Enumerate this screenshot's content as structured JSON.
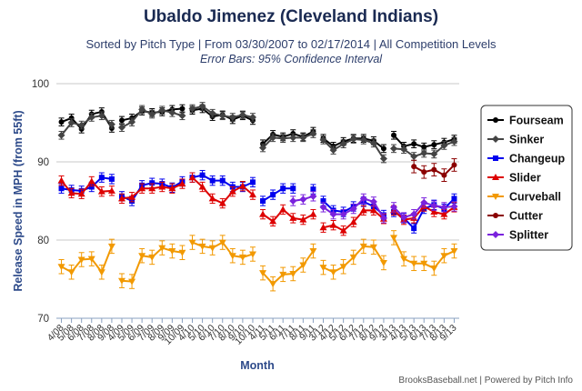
{
  "chart": {
    "title": "Ubaldo Jimenez (Cleveland Indians)",
    "subtitle": "Sorted by Pitch Type | From 03/30/2007 to 02/17/2014 | All Competition Levels",
    "subtitle2": "Error Bars: 95% Confidence Interval",
    "credits": "BrooksBaseball.net | Powered by Pitch Info"
  },
  "chart_data": {
    "type": "line",
    "title": "Ubaldo Jimenez (Cleveland Indians)",
    "xlabel": "Month",
    "ylabel": "Release Speed in MPH (from 55ft)",
    "ylim": [
      70,
      100
    ],
    "yticks": [
      70,
      80,
      90,
      100
    ],
    "grid": true,
    "legend_position": "right",
    "categories": [
      "4/08",
      "5/08",
      "6/08",
      "7/08",
      "8/08",
      "9/08",
      "4/09",
      "5/09",
      "6/09",
      "7/09",
      "8/09",
      "9/09",
      "10/09",
      "4/10",
      "5/10",
      "6/10",
      "7/10",
      "8/10",
      "9/10",
      "10/10",
      "4/11",
      "5/11",
      "6/11",
      "7/11",
      "8/11",
      "9/11",
      "3/12",
      "4/12",
      "5/12",
      "6/12",
      "7/12",
      "8/12",
      "9/12",
      "3/13",
      "4/13",
      "5/13",
      "6/13",
      "7/13",
      "8/13",
      "9/13"
    ],
    "series": [
      {
        "name": "Fourseam",
        "color": "#000000",
        "marker": "circle",
        "values": [
          95.1,
          95.6,
          94.2,
          96.1,
          96.4,
          94.3,
          95.3,
          95.6,
          96.5,
          96.3,
          96.4,
          96.7,
          96.8,
          96.6,
          96.8,
          95.8,
          96.0,
          95.4,
          95.9,
          95.3,
          92.3,
          93.5,
          93.2,
          93.6,
          93.2,
          93.9,
          93.0,
          92.0,
          92.6,
          93.0,
          93.0,
          92.7,
          91.7,
          93.4,
          92.0,
          92.3,
          91.9,
          92.2,
          92.5,
          92.9
        ]
      },
      {
        "name": "Sinker",
        "color": "#444444",
        "marker": "diamond",
        "values": [
          93.4,
          95.0,
          94.7,
          95.7,
          95.9,
          94.8,
          94.4,
          95.1,
          96.7,
          96.1,
          96.6,
          96.3,
          95.9,
          96.8,
          97.1,
          96.2,
          95.9,
          95.7,
          96.0,
          95.7,
          91.8,
          93.1,
          93.0,
          93.1,
          93.1,
          93.6,
          92.8,
          91.5,
          92.3,
          92.9,
          92.8,
          92.4,
          90.4,
          91.7,
          91.6,
          90.7,
          91.1,
          91.0,
          92.1,
          92.6
        ]
      },
      {
        "name": "Changeup",
        "color": "#0000ee",
        "marker": "square",
        "values": [
          86.6,
          86.4,
          86.3,
          86.8,
          88.0,
          87.8,
          85.6,
          85.0,
          87.0,
          87.3,
          87.2,
          86.7,
          87.5,
          88.0,
          88.3,
          87.6,
          87.6,
          86.8,
          86.8,
          87.4,
          85.0,
          85.8,
          86.6,
          86.6,
          null,
          86.5,
          85.0,
          83.8,
          83.6,
          84.3,
          84.9,
          84.3,
          83.2,
          83.6,
          82.8,
          81.5,
          84.0,
          84.5,
          84.0,
          85.3
        ]
      },
      {
        "name": "Slider",
        "color": "#dd0000",
        "marker": "triangle",
        "values": [
          87.6,
          86.0,
          85.9,
          87.5,
          86.2,
          86.3,
          85.3,
          85.5,
          86.6,
          86.6,
          86.8,
          86.6,
          87.2,
          88.0,
          86.8,
          85.3,
          84.7,
          86.2,
          86.9,
          85.8,
          83.3,
          82.4,
          83.9,
          82.8,
          82.6,
          83.3,
          81.6,
          81.9,
          81.2,
          82.3,
          83.8,
          83.8,
          82.7,
          83.8,
          82.6,
          82.8,
          84.3,
          83.6,
          83.3,
          84.2
        ]
      },
      {
        "name": "Curveball",
        "color": "#f29900",
        "marker": "triangle-down",
        "values": [
          76.6,
          75.9,
          77.5,
          77.6,
          75.9,
          79.2,
          74.8,
          74.7,
          78.0,
          77.8,
          79.0,
          78.6,
          78.4,
          79.7,
          79.2,
          79.0,
          79.7,
          78.0,
          77.8,
          78.2,
          75.8,
          74.4,
          75.6,
          75.7,
          76.8,
          78.6,
          76.5,
          75.9,
          76.6,
          77.8,
          79.2,
          79.1,
          77.1,
          80.3,
          77.6,
          77.0,
          77.0,
          76.4,
          78.0,
          78.6
        ]
      },
      {
        "name": "Cutter",
        "color": "#8b0000",
        "marker": "circle",
        "values": [
          null,
          null,
          null,
          null,
          null,
          null,
          null,
          null,
          null,
          null,
          null,
          null,
          null,
          null,
          null,
          null,
          null,
          null,
          null,
          null,
          null,
          null,
          null,
          null,
          null,
          null,
          null,
          null,
          null,
          null,
          null,
          null,
          null,
          null,
          null,
          89.4,
          88.7,
          89.0,
          88.3,
          89.6
        ]
      },
      {
        "name": "Splitter",
        "color": "#7a22dd",
        "marker": "diamond",
        "values": [
          null,
          null,
          null,
          null,
          null,
          null,
          null,
          null,
          null,
          null,
          null,
          null,
          null,
          null,
          null,
          null,
          null,
          null,
          null,
          null,
          null,
          null,
          null,
          85.0,
          85.2,
          85.6,
          84.2,
          83.3,
          83.3,
          84.0,
          85.3,
          84.9,
          82.8,
          84.2,
          82.9,
          83.3,
          84.8,
          84.4,
          84.2,
          84.3
        ]
      }
    ]
  }
}
